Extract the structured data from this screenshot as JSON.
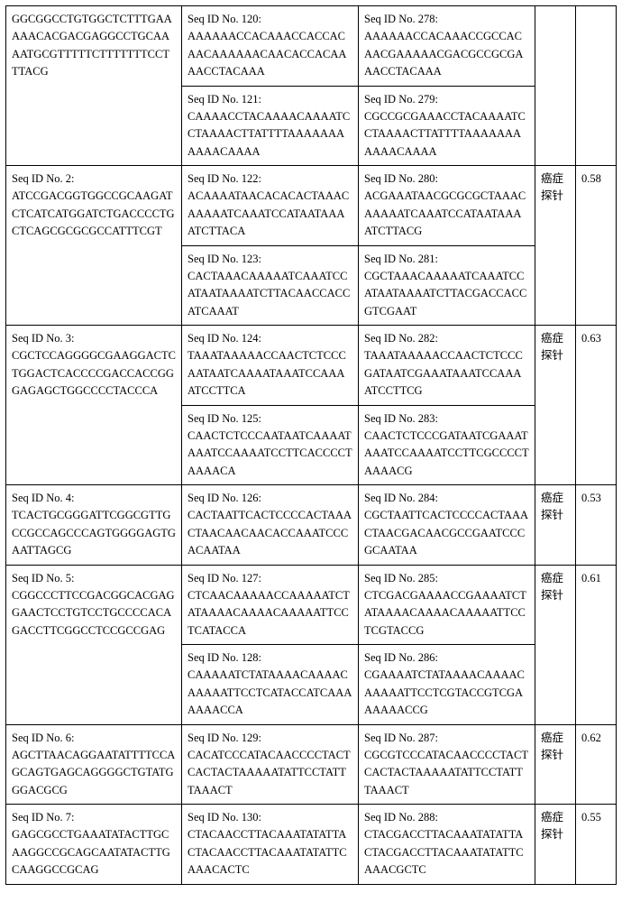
{
  "rows": [
    {
      "a": {
        "id": "",
        "seq": "GGCGGCCTGTGGCTCTTTGAAAAACACGACGAGGCCTGCAAAATGCGTTTTTCTTTTTTTCCTTTACG"
      },
      "b_top": {
        "id": "Seq ID No. 120:",
        "seq": "AAAAAACCACAAACCACCACAACAAAAAACAACACCACAAAACCTACAAA"
      },
      "b_bot": {
        "id": "Seq ID No. 121:",
        "seq": "CAAAACCTACAAAACAAAATCCTAAAACTTATTTTAAAAAAAAAAACAAAA"
      },
      "c_top": {
        "id": "Seq ID No. 278:",
        "seq": "AAAAAACCACAAACCGCCACAACGAAAAACGACGCCGCGAAACCTACAAA"
      },
      "c_bot": {
        "id": "Seq ID No. 279:",
        "seq": "CGCCGCGAAACCTACAAAATCCTAAAACTTATTTTAAAAAAAAAAACAAAA"
      },
      "d": "",
      "e": ""
    },
    {
      "a": {
        "id": "Seq ID No. 2:",
        "seq": "ATCCGACGGTGGCCGCAAGATCTCATCATGGATCTGACCCCTGCTCAGCGCGCGCCATTTCGT"
      },
      "b_top": {
        "id": "Seq ID No. 122:",
        "seq": "ACAAAATAACACACACTAAACAAAAATCAAATCCATAATAAAATCTTACA"
      },
      "b_bot": {
        "id": "Seq ID No. 123:",
        "seq": "CACTAAACAAAAATCAAATCCATAATAAAATCTTACAACCACCATCAAAT"
      },
      "c_top": {
        "id": "Seq ID No. 280:",
        "seq": "ACGAAATAACGCGCGCTAAACAAAAATCAAATCCATAATAAAATCTTACG"
      },
      "c_bot": {
        "id": "Seq ID No. 281:",
        "seq": "CGCTAAACAAAAATCAAATCCATAATAAAATCTTACGACCACCGTCGAAT"
      },
      "d": "癌症探针",
      "e": "0.58"
    },
    {
      "a": {
        "id": "Seq ID No. 3:",
        "seq": "CGCTCCAGGGGCGAAGGACTCTGGACTCACCCCGACCACCGGGAGAGCTGGCCCCTACCCA"
      },
      "b_top": {
        "id": "Seq ID No. 124:",
        "seq": "TAAATAAAAACCAACTCTCCCAATAATCAAAATAAATCCAAAATCCTTCA"
      },
      "b_bot": {
        "id": "Seq ID No. 125:",
        "seq": "CAACTCTCCCAATAATCAAAATAAATCCAAAATCCTTCACCCCTAAAACA"
      },
      "c_top": {
        "id": "Seq ID No. 282:",
        "seq": "TAAATAAAAACCAACTCTCCCGATAATCGAAATAAATCCAAAATCCTTCG"
      },
      "c_bot": {
        "id": "Seq ID No. 283:",
        "seq": "CAACTCTCCCGATAATCGAAATAAATCCAAAATCCTTCGCCCCTAAAACG"
      },
      "d": "癌症探针",
      "e": "0.63"
    },
    {
      "a": {
        "id": "Seq ID No. 4:",
        "seq": "TCACTGCGGGATTCGGCGTTGCCGCCAGCCCAGTGGGGAGTGAATTAGCG"
      },
      "b_top": {
        "id": "Seq ID No. 126:",
        "seq": "CACTAATTCACTCCCCACTAAACTAACAACAACACCAAATCCCACAATAA"
      },
      "b_bot": null,
      "c_top": {
        "id": "Seq ID No. 284:",
        "seq": "CGCTAATTCACTCCCCACTAAACTAACGACAACGCCGAATCCCGCAATAA"
      },
      "c_bot": null,
      "d": "癌症探针",
      "e": "0.53"
    },
    {
      "a": {
        "id": "Seq ID No. 5:",
        "seq": "CGGCCCTTCCGACGGCACGAGGAACTCCTGTCCTGCCCCACAGACCTTCGGCCTCCGCCGAG"
      },
      "b_top": {
        "id": "Seq ID No. 127:",
        "seq": "CTCAACAAAAACCAAAAATCTATAAAACAAAACAAAAATTCCTCATACCA"
      },
      "b_bot": {
        "id": "Seq ID No. 128:",
        "seq": "CAAAAATCTATAAAACAAAACAAAAATTCCTCATACCATCAAAAAAACCA"
      },
      "c_top": {
        "id": "Seq ID No. 285:",
        "seq": "CTCGACGAAAACCGAAAATCTATAAAACAAAACAAAAATTCCTCGTACCG"
      },
      "c_bot": {
        "id": "Seq ID No. 286:",
        "seq": "CGAAAATCTATAAAACAAAACAAAAATTCCTCGTACCGTCGAAAAAACCG"
      },
      "d": "癌症探针",
      "e": "0.61"
    },
    {
      "a": {
        "id": "Seq ID No. 6:",
        "seq": "AGCTTAACAGGAATATTTTCCAGCAGTGAGCAGGGGCTGTATGGGACGCG"
      },
      "b_top": {
        "id": "Seq ID No. 129:",
        "seq": "CACATCCCATACAACCCCTACTCACTACTAAAAATATTCCTATTTAAACT"
      },
      "b_bot": null,
      "c_top": {
        "id": "Seq ID No. 287:",
        "seq": "CGCGTCCCATACAACCCCTACTCACTACTAAAAATATTCCTATTTAAACT"
      },
      "c_bot": null,
      "d": "癌症探针",
      "e": "0.62"
    },
    {
      "a": {
        "id": "Seq ID No. 7:",
        "seq": "GAGCGCCTGAAATATACTTGCAAGGCCGCAGCAATATACTTGCAAGGCCGCAG"
      },
      "b_top": {
        "id": "Seq ID No. 130:",
        "seq": "CTACAACCTTACAAATATATTACTACAACCTTACAAATATATTCAAACACTC"
      },
      "b_bot": null,
      "c_top": {
        "id": "Seq ID No. 288:",
        "seq": "CTACGACCTTACAAATATATTACTACGACCTTACAAATATATTCAAACGCTC"
      },
      "c_bot": null,
      "d": "癌症探针",
      "e": "0.55"
    }
  ]
}
